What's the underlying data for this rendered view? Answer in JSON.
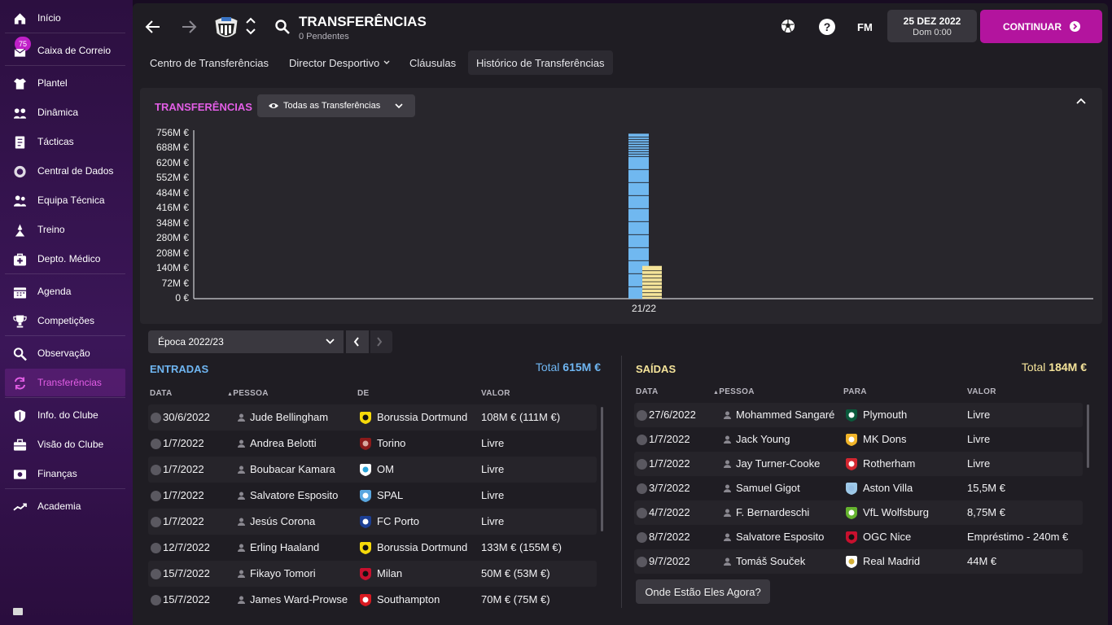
{
  "sidebar": {
    "items": [
      {
        "label": "Início",
        "icon": "home-icon"
      },
      {
        "label": "Caixa de Correio",
        "icon": "inbox-icon",
        "badge": "75"
      },
      {
        "label": "Plantel",
        "icon": "shirt-icon"
      },
      {
        "label": "Dinâmica",
        "icon": "dynamics-icon"
      },
      {
        "label": "Tácticas",
        "icon": "tactics-icon"
      },
      {
        "label": "Central de Dados",
        "icon": "data-hub-icon"
      },
      {
        "label": "Equipa Técnica",
        "icon": "staff-icon"
      },
      {
        "label": "Treino",
        "icon": "training-icon"
      },
      {
        "label": "Depto. Médico",
        "icon": "medical-icon"
      },
      {
        "label": "Agenda",
        "icon": "calendar-icon"
      },
      {
        "label": "Competições",
        "icon": "trophy-icon"
      },
      {
        "label": "Observação",
        "icon": "scouting-icon"
      },
      {
        "label": "Transferências",
        "icon": "transfers-icon"
      },
      {
        "label": "Info. do Clube",
        "icon": "shield-icon"
      },
      {
        "label": "Visão do Clube",
        "icon": "briefcase-icon"
      },
      {
        "label": "Finanças",
        "icon": "finances-icon"
      },
      {
        "label": "Academia",
        "icon": "academy-icon"
      }
    ],
    "active": "Transferências"
  },
  "header": {
    "title": "TRANSFERÊNCIAS",
    "subtitle": "0 Pendentes",
    "fm_label": "FM",
    "date": "25 DEZ 2022",
    "time": "Dom 0:00",
    "continue_label": "CONTINUAR"
  },
  "subtabs": [
    "Centro de Transferências",
    "Director Desportivo",
    "Cláusulas",
    "Histórico de Transferências"
  ],
  "chart_panel": {
    "title": "TRANSFERÊNCIAS",
    "filter_label": "Todas as Transferências"
  },
  "chart_data": {
    "type": "bar",
    "categories": [
      "21/22"
    ],
    "series": [
      {
        "name": "Entradas",
        "values": [
          755
        ],
        "color": "#70b8f0"
      },
      {
        "name": "Saídas",
        "values": [
          150
        ],
        "color": "#f5e49a"
      }
    ],
    "ytick_labels": [
      "756M €",
      "688M €",
      "620M €",
      "552M €",
      "484M €",
      "416M €",
      "348M €",
      "280M €",
      "208M €",
      "140M €",
      "72M €",
      "0 €"
    ],
    "ylim": [
      0,
      756
    ]
  },
  "season_selector": {
    "value": "Época 2022/23"
  },
  "entradas": {
    "title": "ENTRADAS",
    "total_label": "Total",
    "total_value": "615M €",
    "columns": {
      "date": "DATA",
      "person": "PESSOA",
      "from": "DE",
      "value": "VALOR"
    },
    "rows": [
      {
        "date": "30/6/2022",
        "person": "Jude Bellingham",
        "club": "Borussia Dortmund",
        "value": "108M € (111M €)",
        "crest": "#f5d90a",
        "crest2": "#111"
      },
      {
        "date": "1/7/2022",
        "person": "Andrea Belotti",
        "club": "Torino",
        "value": "Livre",
        "crest": "#8b1a1a",
        "crest2": "#d8a8a0"
      },
      {
        "date": "1/7/2022",
        "person": "Boubacar Kamara",
        "club": "OM",
        "value": "Livre",
        "crest": "#ffffff",
        "crest2": "#29a3d9"
      },
      {
        "date": "1/7/2022",
        "person": "Salvatore Esposito",
        "club": "SPAL",
        "value": "Livre",
        "crest": "#5aa7e0",
        "crest2": "#ffffff"
      },
      {
        "date": "1/7/2022",
        "person": "Jesús Corona",
        "club": "FC Porto",
        "value": "Livre",
        "crest": "#1c3f94",
        "crest2": "#ffffff"
      },
      {
        "date": "12/7/2022",
        "person": "Erling Haaland",
        "club": "Borussia Dortmund",
        "value": "133M € (155M €)",
        "crest": "#f5d90a",
        "crest2": "#111"
      },
      {
        "date": "15/7/2022",
        "person": "Fikayo Tomori",
        "club": "Milan",
        "value": "50M € (53M €)",
        "crest": "#c8102e",
        "crest2": "#111"
      },
      {
        "date": "15/7/2022",
        "person": "James Ward-Prowse",
        "club": "Southampton",
        "value": "70M € (75M €)",
        "crest": "#d71920",
        "crest2": "#ffffff"
      }
    ]
  },
  "saidas": {
    "title": "SAÍDAS",
    "total_label": "Total",
    "total_value": "184M €",
    "columns": {
      "date": "DATA",
      "person": "PESSOA",
      "to": "PARA",
      "value": "VALOR"
    },
    "rows": [
      {
        "date": "27/6/2022",
        "person": "Mohammed Sangaré",
        "club": "Plymouth",
        "value": "Livre",
        "crest": "#0a5a3c",
        "crest2": "#ffffff"
      },
      {
        "date": "1/7/2022",
        "person": "Jack Young",
        "club": "MK Dons",
        "value": "Livre",
        "crest": "#f0b429",
        "crest2": "#ffffff"
      },
      {
        "date": "1/7/2022",
        "person": "Jay Turner-Cooke",
        "club": "Rotherham",
        "value": "Livre",
        "crest": "#d22630",
        "crest2": "#ffffff"
      },
      {
        "date": "3/7/2022",
        "person": "Samuel Gigot",
        "club": "Aston Villa",
        "value": "15,5M €",
        "crest": "#9ec9e8",
        "crest2": "#95bfe5"
      },
      {
        "date": "4/7/2022",
        "person": "F. Bernardeschi",
        "club": "VfL Wolfsburg",
        "value": "8,75M €",
        "crest": "#65b32e",
        "crest2": "#ffffff"
      },
      {
        "date": "8/7/2022",
        "person": "Salvatore Esposito",
        "club": "OGC Nice",
        "value": "Empréstimo - 240m €",
        "crest": "#c8102e",
        "crest2": "#111"
      },
      {
        "date": "9/7/2022",
        "person": "Tomáš Souček",
        "club": "Real Madrid",
        "value": "44M €",
        "crest": "#ffffff",
        "crest2": "#d4af37"
      }
    ],
    "where_now_label": "Onde Estão Eles Agora?"
  }
}
